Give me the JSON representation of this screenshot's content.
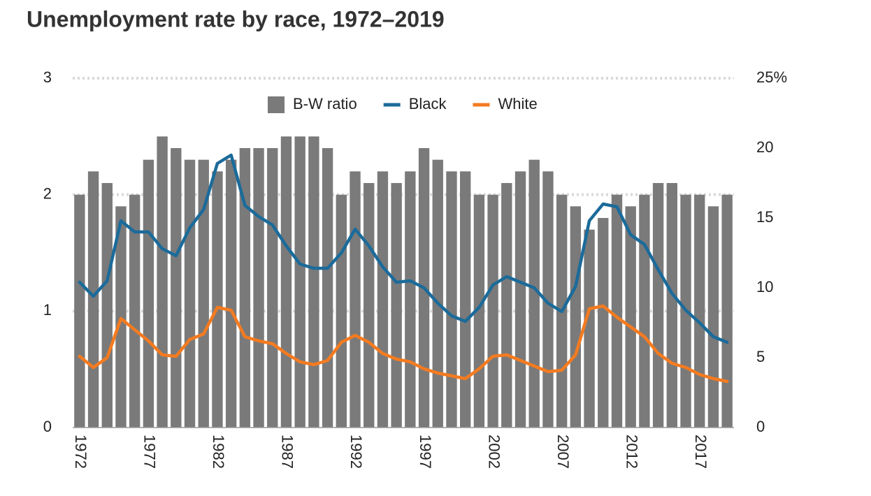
{
  "chart_data": {
    "type": "combo",
    "title": "Unemployment rate by race, 1972–2019",
    "categories": [
      "1972",
      null,
      null,
      null,
      null,
      "1977",
      null,
      null,
      null,
      null,
      "1982",
      null,
      null,
      null,
      null,
      "1987",
      null,
      null,
      null,
      null,
      "1992",
      null,
      null,
      null,
      null,
      "1997",
      null,
      null,
      null,
      null,
      "2002",
      null,
      null,
      null,
      null,
      "2007",
      null,
      null,
      null,
      null,
      "2012",
      null,
      null,
      null,
      null,
      "2017",
      null,
      null
    ],
    "series": [
      {
        "name": "B-W ratio",
        "type": "bar",
        "color": "#7a7a7a",
        "values": [
          2.0,
          2.2,
          2.1,
          1.9,
          2.0,
          2.3,
          2.5,
          2.4,
          2.3,
          2.3,
          2.2,
          2.3,
          2.4,
          2.4,
          2.4,
          2.5,
          2.5,
          2.5,
          2.4,
          2.0,
          2.2,
          2.1,
          2.2,
          2.1,
          2.2,
          2.4,
          2.3,
          2.2,
          2.2,
          2.0,
          2.0,
          2.1,
          2.2,
          2.3,
          2.2,
          2.0,
          1.9,
          1.7,
          1.8,
          2.0,
          1.9,
          2.0,
          2.1,
          2.1,
          2.0,
          2.0,
          1.9,
          2.0
        ]
      },
      {
        "name": "Black",
        "type": "line",
        "axis": "y2",
        "color": "#1b6b9a",
        "values": [
          10.4,
          9.4,
          10.5,
          14.8,
          14.0,
          14.0,
          12.8,
          12.3,
          14.3,
          15.6,
          18.9,
          19.5,
          15.9,
          15.1,
          14.5,
          13.0,
          11.7,
          11.4,
          11.4,
          12.5,
          14.2,
          13.0,
          11.5,
          10.4,
          10.5,
          10.0,
          8.9,
          8.0,
          7.6,
          8.6,
          10.2,
          10.8,
          10.4,
          10.0,
          8.9,
          8.3,
          10.1,
          14.8,
          16.0,
          15.8,
          13.8,
          13.1,
          11.3,
          9.6,
          8.4,
          7.5,
          6.5,
          6.1
        ]
      },
      {
        "name": "White",
        "type": "line",
        "axis": "y2",
        "color": "#f47b20",
        "values": [
          5.1,
          4.3,
          5.0,
          7.8,
          7.0,
          6.2,
          5.2,
          5.1,
          6.3,
          6.7,
          8.6,
          8.4,
          6.5,
          6.2,
          6.0,
          5.3,
          4.7,
          4.5,
          4.8,
          6.1,
          6.6,
          6.1,
          5.3,
          4.9,
          4.7,
          4.2,
          3.9,
          3.7,
          3.5,
          4.2,
          5.1,
          5.2,
          4.8,
          4.4,
          4.0,
          4.1,
          5.2,
          8.5,
          8.7,
          7.9,
          7.2,
          6.5,
          5.3,
          4.6,
          4.3,
          3.8,
          3.5,
          3.3
        ]
      }
    ],
    "ylim": [
      0,
      3
    ],
    "yticks": [
      0,
      1,
      2,
      3
    ],
    "y2lim": [
      0,
      25
    ],
    "y2ticks": [
      0,
      5,
      10,
      15,
      20,
      {
        "value": 25,
        "label": "25%"
      }
    ],
    "grid": true,
    "legend": "top"
  }
}
